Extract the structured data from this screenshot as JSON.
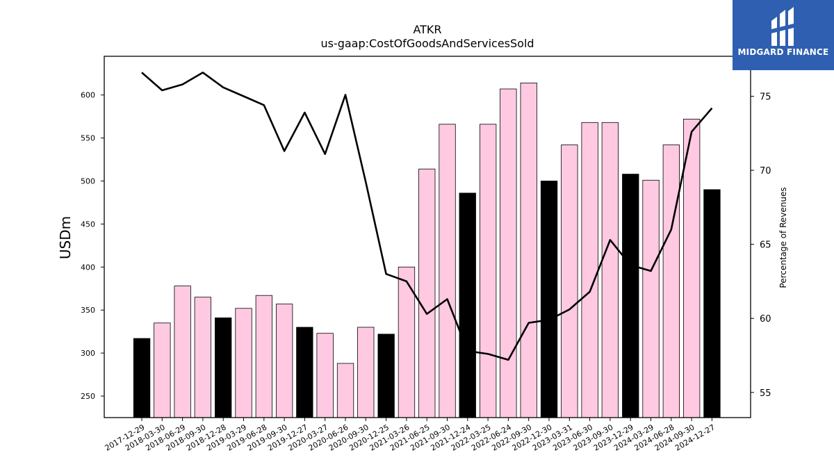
{
  "brand": {
    "name": "MIDGARD FINANCE",
    "bg_color": "#2f5fb0"
  },
  "chart_data": {
    "type": "bar",
    "title": "ATKR",
    "subtitle": "us-gaap:CostOfGoodsAndServicesSold",
    "ylabel": "USDm",
    "y2label": "Percentage of Revenues",
    "ylim": [
      225,
      645
    ],
    "y2lim": [
      53.3,
      77.7
    ],
    "yticks": [
      250,
      300,
      350,
      400,
      450,
      500,
      550,
      600
    ],
    "y2ticks": [
      55,
      60,
      65,
      70,
      75
    ],
    "categories": [
      "2017-12-29",
      "2018-03-30",
      "2018-06-29",
      "2018-09-30",
      "2018-12-28",
      "2019-03-29",
      "2019-06-28",
      "2019-09-30",
      "2019-12-27",
      "2020-03-27",
      "2020-06-26",
      "2020-09-30",
      "2020-12-25",
      "2021-03-26",
      "2021-06-25",
      "2021-09-30",
      "2021-12-24",
      "2022-03-25",
      "2022-06-24",
      "2022-09-30",
      "2022-12-30",
      "2023-03-31",
      "2023-06-30",
      "2023-09-30",
      "2023-12-29",
      "2024-03-29",
      "2024-06-28",
      "2024-09-30",
      "2024-12-27"
    ],
    "series": [
      {
        "kind": "bar",
        "values": [
          317,
          335,
          378,
          365,
          341,
          352,
          367,
          357,
          330,
          323,
          288,
          330,
          322,
          400,
          514,
          566,
          486,
          566,
          607,
          614,
          500,
          542,
          568,
          568,
          508,
          501,
          542,
          572,
          490
        ],
        "colors": [
          "#000000",
          "#ffc9e2",
          "#ffc9e2",
          "#ffc9e2",
          "#000000",
          "#ffc9e2",
          "#ffc9e2",
          "#ffc9e2",
          "#000000",
          "#ffc9e2",
          "#ffc9e2",
          "#ffc9e2",
          "#000000",
          "#ffc9e2",
          "#ffc9e2",
          "#ffc9e2",
          "#000000",
          "#ffc9e2",
          "#ffc9e2",
          "#ffc9e2",
          "#000000",
          "#ffc9e2",
          "#ffc9e2",
          "#ffc9e2",
          "#000000",
          "#ffc9e2",
          "#ffc9e2",
          "#ffc9e2",
          "#000000"
        ]
      },
      {
        "kind": "line",
        "axis": "right",
        "color": "#000000",
        "values": [
          76.6,
          75.4,
          75.8,
          76.6,
          75.6,
          75.0,
          74.4,
          71.3,
          73.9,
          71.1,
          75.1,
          69.2,
          63.0,
          62.5,
          60.3,
          61.3,
          57.8,
          57.6,
          57.2,
          59.7,
          59.9,
          60.6,
          61.8,
          65.3,
          63.6,
          63.2,
          66.0,
          72.6,
          74.2
        ]
      }
    ],
    "grid": false,
    "legend": "none"
  }
}
